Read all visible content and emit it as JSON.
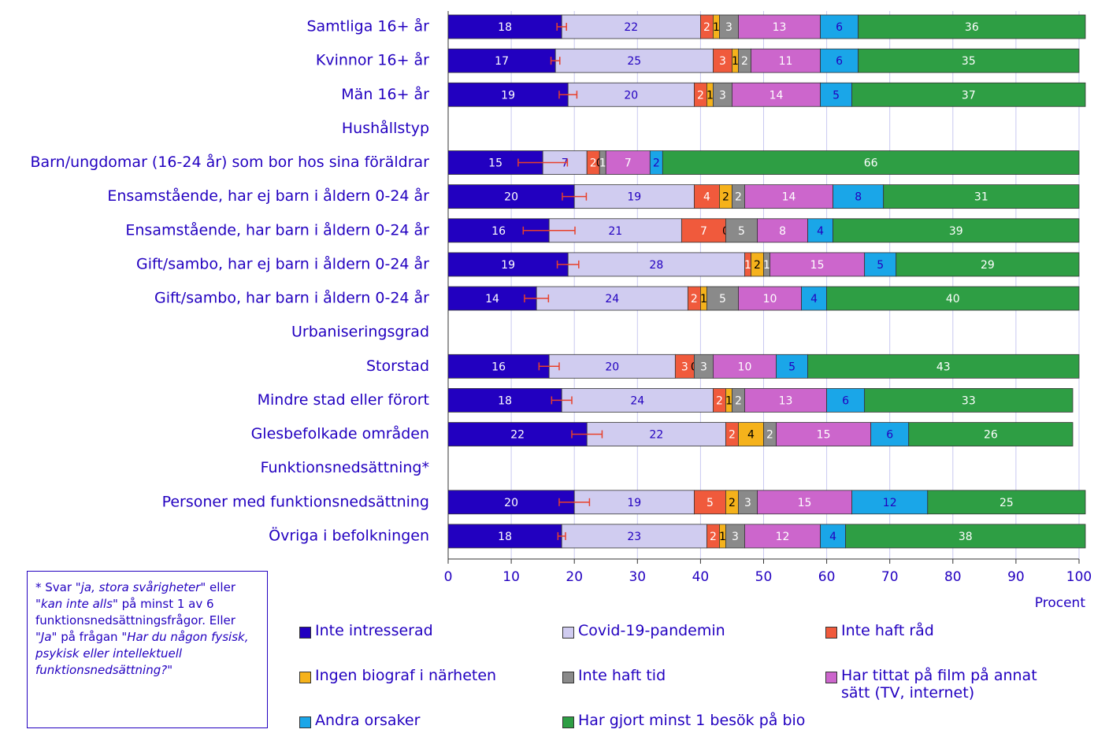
{
  "chart_data": {
    "type": "stacked_barh",
    "categories": [
      "Samtliga 16+ år",
      "Kvinnor 16+ år",
      "Män 16+ år",
      "Hushållstyp",
      "Barn/ungdomar (16-24 år) som bor hos sina föräldrar",
      "Ensamstående, har ej barn i åldern 0-24 år",
      "Ensamstående, har barn i åldern 0-24 år",
      "Gift/sambo, har ej barn i åldern 0-24 år",
      "Gift/sambo, har barn i åldern 0-24 år",
      "Urbaniseringsgrad",
      "Storstad",
      "Mindre stad eller förort",
      "Glesbefolkade områden",
      "Funktionsnedsättning*",
      "Personer med funktionsnedsättning",
      "Övriga i befolkningen"
    ],
    "series": [
      {
        "name": "Inte intresserad",
        "color": "#2200c0",
        "label_color": "#ffffff",
        "values": [
          18,
          17,
          19,
          null,
          15,
          20,
          16,
          19,
          14,
          null,
          16,
          18,
          22,
          null,
          20,
          18
        ],
        "errors": [
          0.75,
          0.7,
          1.4,
          null,
          3.9,
          1.9,
          4.1,
          1.7,
          1.9,
          null,
          1.6,
          1.6,
          2.4,
          null,
          2.4,
          0.6
        ],
        "error_color": "#e8402a"
      },
      {
        "name": "Covid-19-pandemin",
        "color": "#d0ccf0",
        "label_color": "#2200c0",
        "values": [
          22,
          25,
          20,
          null,
          7,
          19,
          21,
          28,
          24,
          null,
          20,
          24,
          22,
          null,
          19,
          23
        ]
      },
      {
        "name": "Inte haft råd",
        "color": "#f05a3c",
        "label_color": "#ffffff",
        "values": [
          2,
          3,
          2,
          null,
          2,
          4,
          7,
          1,
          2,
          null,
          3,
          2,
          2,
          null,
          5,
          2
        ]
      },
      {
        "name": "Ingen biograf i närheten",
        "color": "#f5b21b",
        "label_color": "#000000",
        "values": [
          1,
          1,
          1,
          null,
          0,
          2,
          0,
          2,
          1,
          null,
          0,
          1,
          4,
          null,
          2,
          1
        ]
      },
      {
        "name": "Inte haft tid",
        "color": "#8a8a8a",
        "label_color": "#ffffff",
        "values": [
          3,
          2,
          3,
          null,
          1,
          2,
          5,
          1,
          5,
          null,
          3,
          2,
          2,
          null,
          3,
          3
        ]
      },
      {
        "name": "Har tittat på film på annat sätt (TV, internet)",
        "color": "#cc66cc",
        "label_color": "#ffffff",
        "values": [
          13,
          11,
          14,
          null,
          7,
          14,
          8,
          15,
          10,
          null,
          10,
          13,
          15,
          null,
          15,
          12
        ]
      },
      {
        "name": "Andra orsaker",
        "color": "#1aa6e8",
        "label_color": "#2200c0",
        "values": [
          6,
          6,
          5,
          null,
          2,
          8,
          4,
          5,
          4,
          null,
          5,
          6,
          6,
          null,
          12,
          4
        ]
      },
      {
        "name": "Har gjort minst 1 besök på bio",
        "color": "#2e9e44",
        "label_color": "#ffffff",
        "values": [
          36,
          35,
          37,
          null,
          66,
          31,
          39,
          29,
          40,
          null,
          43,
          33,
          26,
          null,
          25,
          38
        ]
      }
    ],
    "xlim": [
      0,
      100
    ],
    "xticks": [
      0,
      10,
      20,
      30,
      40,
      50,
      60,
      70,
      80,
      90,
      100
    ],
    "xlabel": "Procent",
    "grid": true,
    "footnote": [
      {
        "text": "* Svar \"",
        "italic": false
      },
      {
        "text": "ja, stora svårigheter",
        "italic": true
      },
      {
        "text": "\" eller \"",
        "italic": false
      },
      {
        "text": "kan inte alls",
        "italic": true
      },
      {
        "text": "\" på minst 1 av 6 funktionsnedsättningsfrågor. Eller \"",
        "italic": false
      },
      {
        "text": "Ja",
        "italic": true
      },
      {
        "text": "\" på frågan ",
        "italic": false
      },
      {
        "text": "\"Har du någon fysisk, psykisk eller intellektuell funktionsnedsättning?\"",
        "italic": true
      }
    ]
  }
}
